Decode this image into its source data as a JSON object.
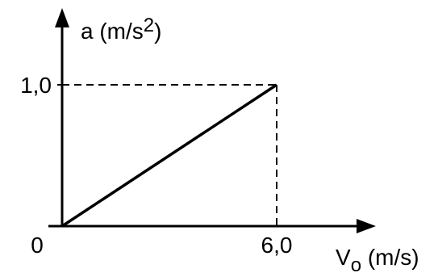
{
  "chart_data": {
    "type": "line",
    "title": "",
    "ylabel": {
      "text": "a (m/s",
      "sup": "2",
      "close": ")"
    },
    "xlabel": {
      "base": "V",
      "sub": "o",
      "rest": " (m/s)"
    },
    "origin_label": "0",
    "x_ticks": [
      {
        "value": 6.0,
        "label": "6,0"
      }
    ],
    "y_ticks": [
      {
        "value": 1.0,
        "label": "1,0"
      }
    ],
    "xlim": [
      0,
      7.0
    ],
    "ylim": [
      0,
      1.22
    ],
    "grid": false,
    "series": [
      {
        "x": [
          0,
          6.0
        ],
        "y": [
          0,
          1.0
        ],
        "style": "solid"
      }
    ],
    "reference_lines": "dashed guides from (6,0 ; 1,0) to both axes",
    "colors": {
      "line": "#000000",
      "background": "#ffffff"
    }
  }
}
